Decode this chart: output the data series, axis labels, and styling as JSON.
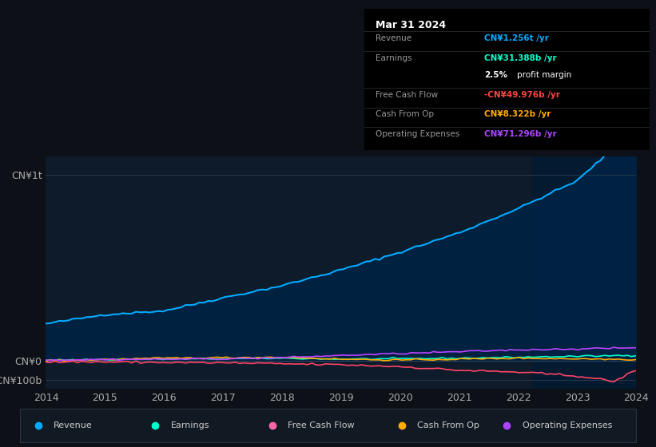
{
  "bg_color": "#0d1117",
  "chart_bg": "#0d1b2a",
  "title": "Mar 31 2024",
  "info_rows": [
    {
      "label": "Revenue",
      "value": "CN¥1.256t /yr",
      "value_color": "#00aaff"
    },
    {
      "label": "Earnings",
      "value": "CN¥31.388b /yr",
      "value_color": "#00ffcc"
    },
    {
      "label": "",
      "value": "2.5% profit margin",
      "value_color": "#ffffff"
    },
    {
      "label": "Free Cash Flow",
      "value": "-CN¥49.976b /yr",
      "value_color": "#ff4444"
    },
    {
      "label": "Cash From Op",
      "value": "CN¥8.322b /yr",
      "value_color": "#ffaa00"
    },
    {
      "label": "Operating Expenses",
      "value": "CN¥71.296b /yr",
      "value_color": "#aa44ff"
    }
  ],
  "yticks_labels": [
    "CN¥1t",
    "CN¥0",
    "-CN¥100b"
  ],
  "yticks_values": [
    1000,
    0,
    -100
  ],
  "xtick_labels": [
    "2014",
    "2015",
    "2016",
    "2017",
    "2018",
    "2019",
    "2020",
    "2021",
    "2022",
    "2023",
    "2024"
  ],
  "ylim": [
    -150,
    1100
  ],
  "xlim": [
    0,
    130
  ],
  "legend_entries": [
    {
      "label": "Revenue",
      "color": "#00aaff"
    },
    {
      "label": "Earnings",
      "color": "#00ffcc"
    },
    {
      "label": "Free Cash Flow",
      "color": "#ff66aa"
    },
    {
      "label": "Cash From Op",
      "color": "#ffaa00"
    },
    {
      "label": "Operating Expenses",
      "color": "#aa44ff"
    }
  ],
  "revenue_color": "#00aaff",
  "earnings_color": "#00ffcc",
  "fcf_color": "#ff4466",
  "cashfromop_color": "#ffaa00",
  "opex_color": "#bb44ff",
  "revenue_fill_color": "#002244"
}
